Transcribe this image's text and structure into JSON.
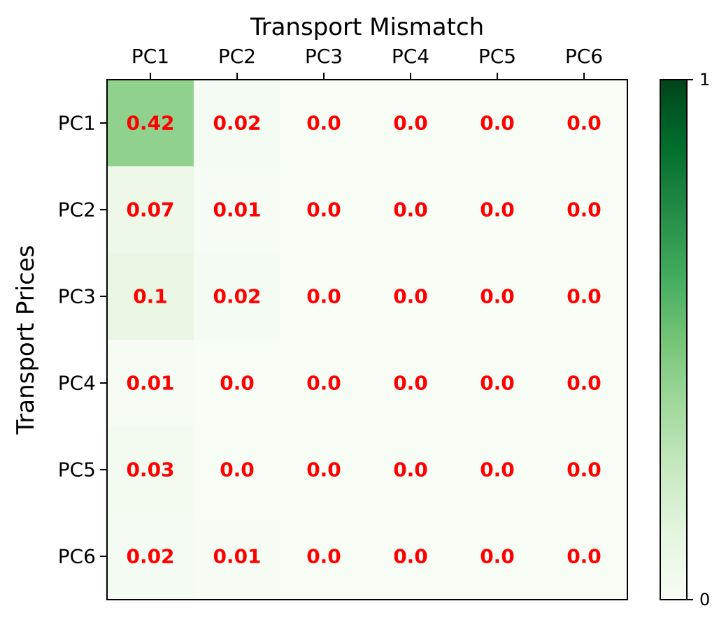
{
  "chart_data": {
    "type": "heatmap",
    "title": "Transport Mismatch",
    "xlabel": "",
    "ylabel": "Transport Prices",
    "x_categories": [
      "PC1",
      "PC2",
      "PC3",
      "PC4",
      "PC5",
      "PC6"
    ],
    "y_categories": [
      "PC1",
      "PC2",
      "PC3",
      "PC4",
      "PC5",
      "PC6"
    ],
    "values": [
      [
        0.42,
        0.02,
        0.0,
        0.0,
        0.0,
        0.0
      ],
      [
        0.07,
        0.01,
        0.0,
        0.0,
        0.0,
        0.0
      ],
      [
        0.1,
        0.02,
        0.0,
        0.0,
        0.0,
        0.0
      ],
      [
        0.01,
        0.0,
        0.0,
        0.0,
        0.0,
        0.0
      ],
      [
        0.03,
        0.0,
        0.0,
        0.0,
        0.0,
        0.0
      ],
      [
        0.02,
        0.01,
        0.0,
        0.0,
        0.0,
        0.0
      ]
    ],
    "value_labels": [
      [
        "0.42",
        "0.02",
        "0.0",
        "0.0",
        "0.0",
        "0.0"
      ],
      [
        "0.07",
        "0.01",
        "0.0",
        "0.0",
        "0.0",
        "0.0"
      ],
      [
        "0.1",
        "0.02",
        "0.0",
        "0.0",
        "0.0",
        "0.0"
      ],
      [
        "0.01",
        "0.0",
        "0.0",
        "0.0",
        "0.0",
        "0.0"
      ],
      [
        "0.03",
        "0.0",
        "0.0",
        "0.0",
        "0.0",
        "0.0"
      ],
      [
        "0.02",
        "0.01",
        "0.0",
        "0.0",
        "0.0",
        "0.0"
      ]
    ],
    "x_axis_position": "top",
    "colormap": "Greens",
    "colorbar": {
      "range": [
        0,
        1
      ],
      "tick_labels": [
        "0",
        "1"
      ]
    },
    "annotation_color": "#ff0000",
    "grid": false
  }
}
